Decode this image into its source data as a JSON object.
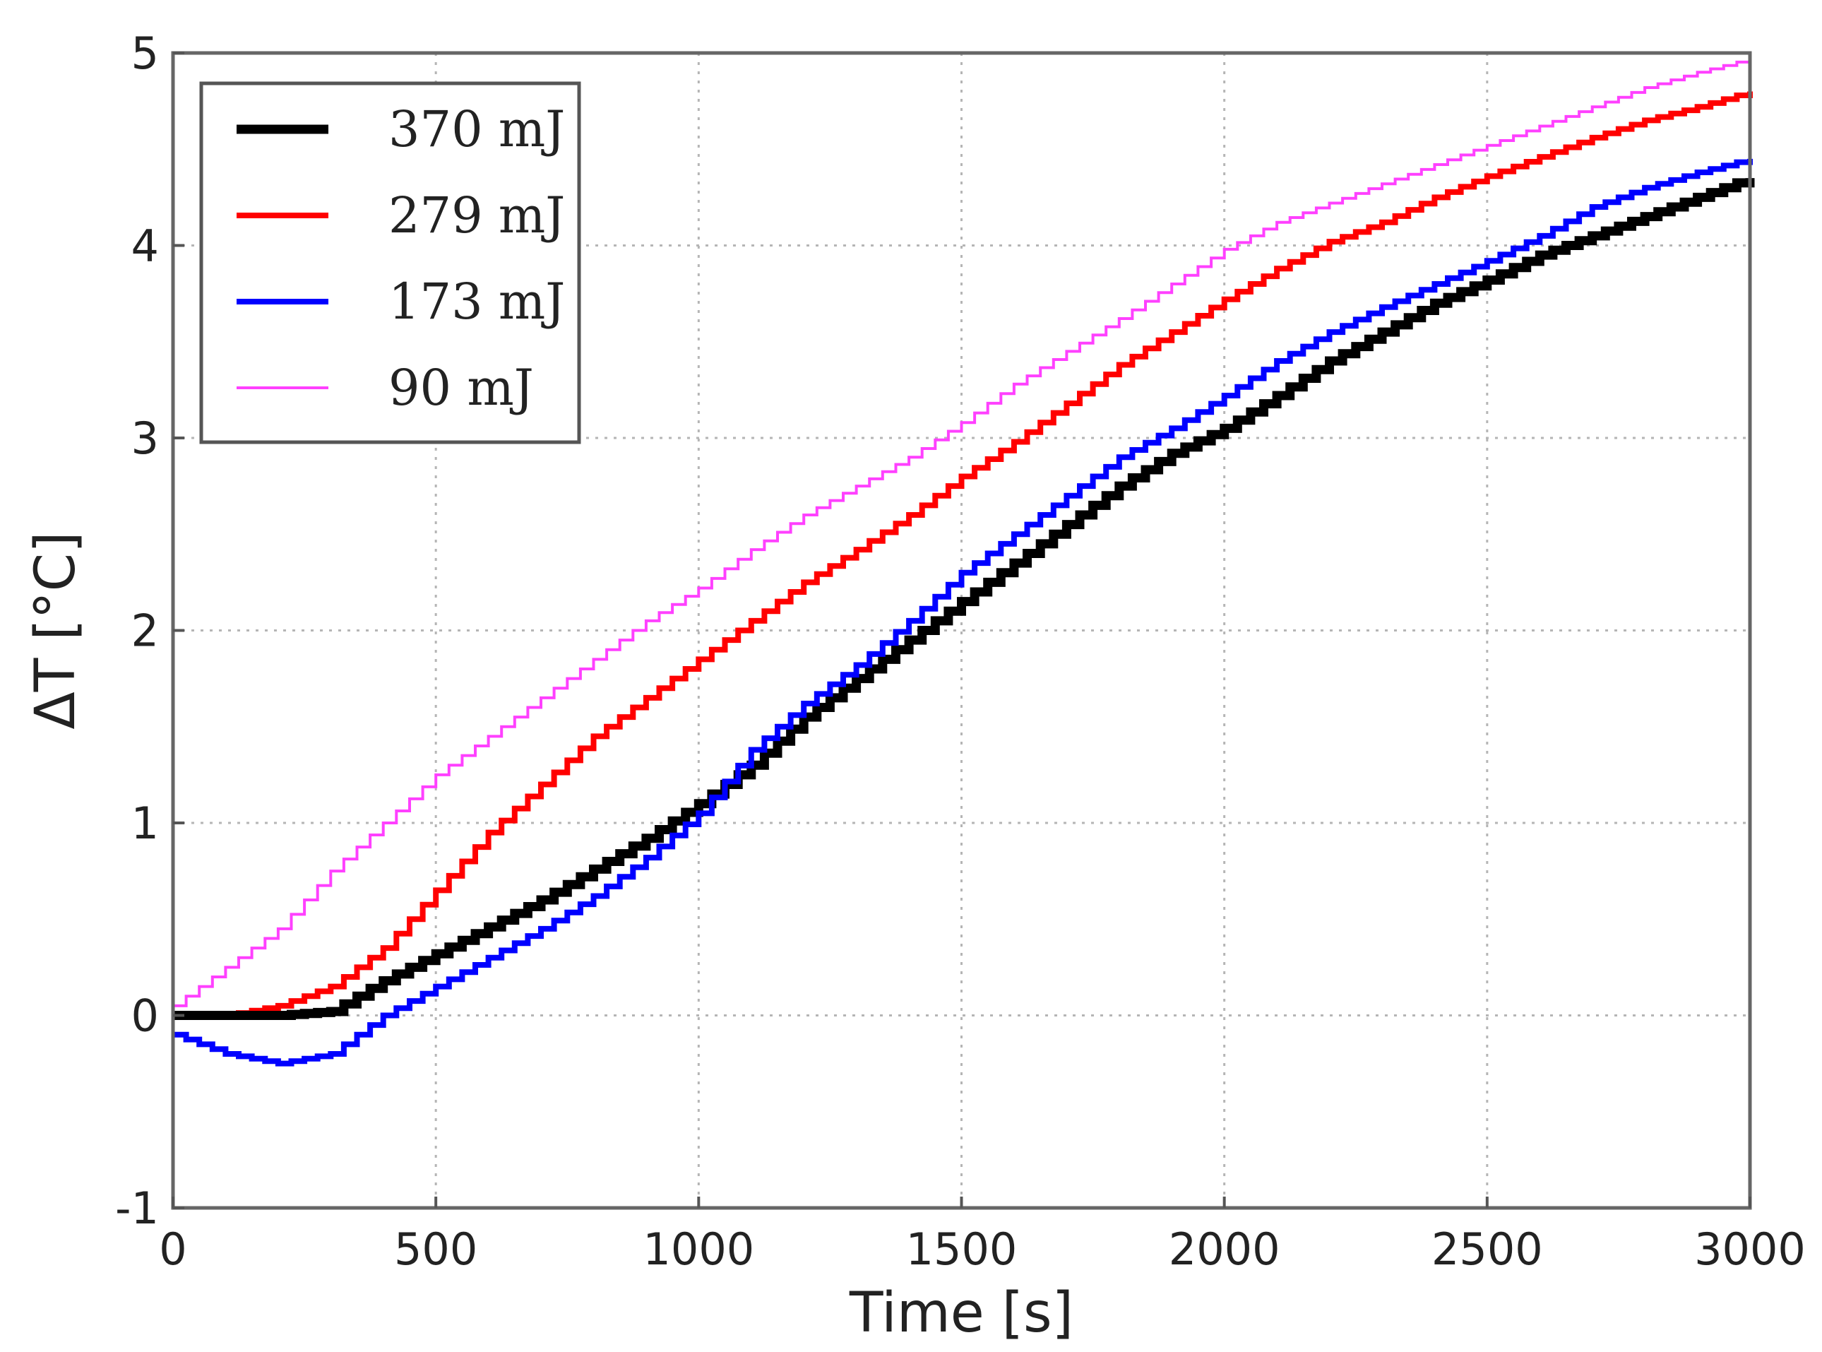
{
  "chart_data": {
    "type": "line",
    "title": "",
    "xlabel": "Time [s]",
    "ylabel": "ΔT [°C]",
    "xlim": [
      0,
      3000
    ],
    "ylim": [
      -1,
      5
    ],
    "xticks": [
      0,
      500,
      1000,
      1500,
      2000,
      2500,
      3000
    ],
    "xtick_labels": [
      "0",
      "500",
      "1000",
      "1500",
      "2000",
      "2500",
      "3000"
    ],
    "yticks": [
      -1,
      0,
      1,
      2,
      3,
      4,
      5
    ],
    "ytick_labels": [
      "-1",
      "0",
      "1",
      "2",
      "3",
      "4",
      "5"
    ],
    "grid": true,
    "legend_position": "top-left",
    "series": [
      {
        "name": "370 mJ",
        "color": "#000000",
        "line_weight": "heavy",
        "x": [
          0,
          100,
          200,
          300,
          400,
          500,
          600,
          700,
          800,
          900,
          1000,
          1100,
          1200,
          1300,
          1400,
          1500,
          1600,
          1700,
          1800,
          1900,
          2000,
          2100,
          2200,
          2300,
          2400,
          2500,
          2600,
          2700,
          2800,
          2900,
          3000
        ],
        "y": [
          0,
          0,
          0,
          0.02,
          0.18,
          0.32,
          0.46,
          0.6,
          0.76,
          0.92,
          1.1,
          1.3,
          1.55,
          1.75,
          1.95,
          2.15,
          2.35,
          2.55,
          2.75,
          2.92,
          3.05,
          3.22,
          3.4,
          3.55,
          3.7,
          3.82,
          3.95,
          4.05,
          4.15,
          4.25,
          4.35
        ]
      },
      {
        "name": "279 mJ",
        "color": "#ff0000",
        "line_weight": "medium",
        "x": [
          0,
          100,
          200,
          300,
          400,
          500,
          600,
          700,
          800,
          900,
          1000,
          1100,
          1200,
          1300,
          1400,
          1500,
          1600,
          1700,
          1800,
          1900,
          2000,
          2100,
          2200,
          2300,
          2400,
          2500,
          2600,
          2700,
          2800,
          2900,
          3000
        ],
        "y": [
          0,
          0,
          0.05,
          0.15,
          0.35,
          0.65,
          0.95,
          1.2,
          1.45,
          1.65,
          1.85,
          2.05,
          2.25,
          2.42,
          2.6,
          2.8,
          2.98,
          3.18,
          3.38,
          3.55,
          3.72,
          3.88,
          4.02,
          4.12,
          4.25,
          4.36,
          4.46,
          4.56,
          4.65,
          4.72,
          4.8
        ]
      },
      {
        "name": "173 mJ",
        "color": "#0000ff",
        "line_weight": "medium",
        "x": [
          0,
          100,
          200,
          300,
          400,
          500,
          600,
          700,
          800,
          900,
          1000,
          1100,
          1200,
          1300,
          1400,
          1500,
          1600,
          1700,
          1800,
          1900,
          2000,
          2100,
          2200,
          2300,
          2400,
          2500,
          2600,
          2700,
          2800,
          2900,
          3000
        ],
        "y": [
          -0.1,
          -0.2,
          -0.25,
          -0.2,
          0,
          0.15,
          0.3,
          0.45,
          0.62,
          0.82,
          1.05,
          1.38,
          1.62,
          1.82,
          2.05,
          2.3,
          2.5,
          2.7,
          2.9,
          3.05,
          3.22,
          3.4,
          3.55,
          3.68,
          3.8,
          3.92,
          4.05,
          4.2,
          4.3,
          4.38,
          4.45
        ]
      },
      {
        "name": "90 mJ",
        "color": "#ff40ff",
        "line_weight": "light",
        "x": [
          0,
          100,
          200,
          300,
          400,
          500,
          600,
          700,
          800,
          900,
          1000,
          1100,
          1200,
          1300,
          1400,
          1500,
          1600,
          1700,
          1800,
          1900,
          2000,
          2100,
          2200,
          2300,
          2400,
          2500,
          2600,
          2700,
          2800,
          2900,
          3000
        ],
        "y": [
          0.05,
          0.25,
          0.45,
          0.75,
          1.0,
          1.25,
          1.45,
          1.65,
          1.85,
          2.05,
          2.22,
          2.42,
          2.6,
          2.75,
          2.9,
          3.08,
          3.28,
          3.45,
          3.62,
          3.8,
          3.98,
          4.12,
          4.22,
          4.32,
          4.42,
          4.52,
          4.62,
          4.72,
          4.82,
          4.9,
          4.97
        ]
      }
    ]
  }
}
